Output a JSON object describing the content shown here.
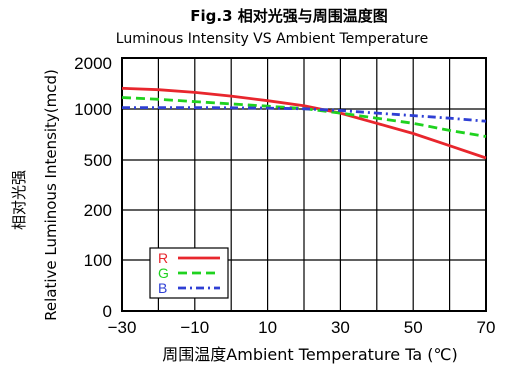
{
  "chart_data": {
    "type": "line",
    "title": "Fig.3 相对光强与周围温度图",
    "subtitle": "Luminous Intensity VS Ambient Temperature",
    "ylabel_cn": "相对光强",
    "ylabel_en": "Relative Luminous Intensity(mcd)",
    "xlabel": "周围温度Ambient Temperature Ta (℃)",
    "x_ticks": [
      "−30",
      "−10",
      "10",
      "30",
      "50",
      "70"
    ],
    "x_tick_values": [
      -30,
      -10,
      10,
      30,
      50,
      70
    ],
    "xlim": [
      -30,
      70
    ],
    "y_ticks": [
      "0",
      "100",
      "200",
      "500",
      "1000",
      "2000"
    ],
    "y_tick_values": [
      0,
      100,
      200,
      500,
      1000,
      2000
    ],
    "grid": true,
    "legend_position": "bottom-left",
    "x": [
      -30,
      -20,
      -10,
      0,
      10,
      20,
      30,
      40,
      50,
      60,
      70
    ],
    "series": [
      {
        "name": "R",
        "color": "#e8262d",
        "dash": "solid",
        "values": [
          1450,
          1420,
          1360,
          1280,
          1180,
          1070,
          960,
          860,
          760,
          640,
          520
        ]
      },
      {
        "name": "G",
        "color": "#1fd21f",
        "dash": "dash",
        "values": [
          1250,
          1210,
          1160,
          1110,
          1060,
          1010,
          960,
          910,
          860,
          790,
          730
        ]
      },
      {
        "name": "B",
        "color": "#2e3fd4",
        "dash": "dashdot",
        "values": [
          1030,
          1030,
          1030,
          1025,
          1020,
          1005,
          985,
          960,
          935,
          910,
          880
        ]
      }
    ]
  }
}
